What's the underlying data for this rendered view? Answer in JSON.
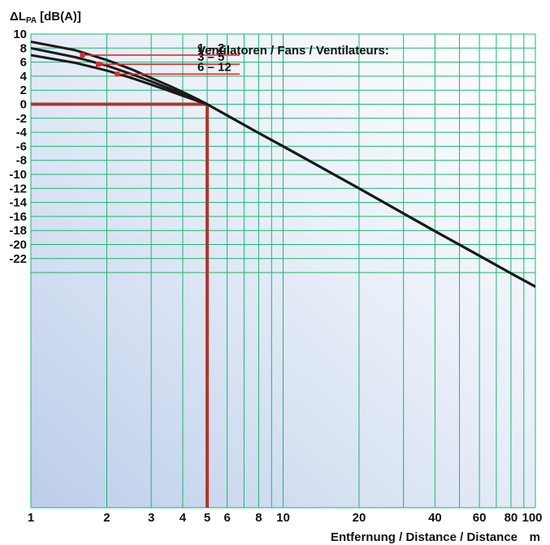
{
  "chart_data": {
    "type": "line",
    "x_scale": "log",
    "xlim": [
      1,
      100
    ],
    "ylim": [
      -24,
      10
    ],
    "ylabel": "ΔL",
    "ylabel_sub": "PA",
    "ylabel_unit": "[dB(A)]",
    "xlabel": "Entfernung / Distance / Distance",
    "xlabel_unit": "m",
    "x_ticks": [
      1,
      2,
      3,
      4,
      5,
      6,
      8,
      10,
      20,
      40,
      60,
      80,
      100
    ],
    "x_tick_labels": [
      "1",
      "2",
      "3",
      "4",
      "5",
      "6",
      "8",
      "10",
      "20",
      "40",
      "60",
      "80",
      "100"
    ],
    "y_ticks": [
      10,
      8,
      6,
      4,
      2,
      0,
      -2,
      -4,
      -6,
      -8,
      -10,
      -12,
      -14,
      -16,
      -18,
      -20,
      -22
    ],
    "y_tick_labels": [
      "10",
      "8",
      "6",
      "4",
      "2",
      "0",
      "-2",
      "-4",
      "-6",
      "-8",
      "-10",
      "-12",
      "-14",
      "-16",
      "-18",
      "-20",
      "-22"
    ],
    "grid": true,
    "legend_title": "Ventilatoren / Fans / Ventilateurs:",
    "series": [
      {
        "name": "1 –  2",
        "x": [
          1,
          1.5,
          2,
          2.5,
          3,
          3.5,
          4,
          4.5,
          5,
          6,
          8,
          10,
          20,
          40,
          60,
          80,
          100
        ],
        "y": [
          8.9,
          7.7,
          6.3,
          5.0,
          3.75,
          2.7,
          1.75,
          0.85,
          0,
          -1.6,
          -4.1,
          -6.0,
          -12.0,
          -18.1,
          -21.6,
          -24.1,
          -26.0
        ]
      },
      {
        "name": "3 –  5",
        "x": [
          1,
          1.5,
          2,
          2.5,
          3,
          3.5,
          4,
          4.5,
          5,
          6,
          8,
          10,
          20,
          40,
          60,
          80,
          100
        ],
        "y": [
          8.0,
          6.7,
          5.5,
          4.3,
          3.25,
          2.3,
          1.45,
          0.7,
          0,
          -1.6,
          -4.1,
          -6.0,
          -12.0,
          -18.1,
          -21.6,
          -24.1,
          -26.0
        ]
      },
      {
        "name": "6 – 12",
        "x": [
          1,
          1.5,
          2,
          2.5,
          3,
          3.5,
          4,
          4.5,
          5,
          6,
          8,
          10,
          20,
          40,
          60,
          80,
          100
        ],
        "y": [
          7.0,
          5.9,
          4.8,
          3.75,
          2.8,
          1.95,
          1.2,
          0.55,
          0,
          -1.6,
          -4.1,
          -6.0,
          -12.0,
          -18.1,
          -21.6,
          -24.1,
          -26.0
        ]
      }
    ],
    "legend_markers": [
      {
        "series": "1 –  2",
        "x": 1.6,
        "y": 7.0
      },
      {
        "series": "3 –  5",
        "x": 1.85,
        "y": 5.7
      },
      {
        "series": "6 – 12",
        "x": 2.2,
        "y": 4.3
      }
    ],
    "reference_point": {
      "x": 5,
      "y": 0
    },
    "colors": {
      "background_light": "#ffffff",
      "background_dark": "#c4d4ea",
      "grid": "#16b870",
      "curve": "#1a1a1a",
      "reference": "#b0362a",
      "legend_line": "#e02a2a"
    }
  }
}
